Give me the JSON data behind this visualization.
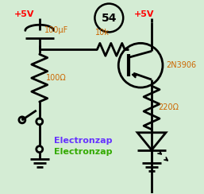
{
  "bg_color": "#d4ecd4",
  "circle54_text": "54",
  "plus5v_left": "+5V",
  "plus5v_right": "+5V",
  "cap_label": "100μF",
  "res1_label": "100Ω",
  "res2_label": "10k",
  "res3_label": "220Ω",
  "bjt_label": "2N3906",
  "electronzap_blue": "#6633ff",
  "electronzap_green": "#33aa00",
  "red_color": "#ff0000",
  "orange_color": "#cc6600",
  "black_color": "#000000",
  "lw": 2.0
}
